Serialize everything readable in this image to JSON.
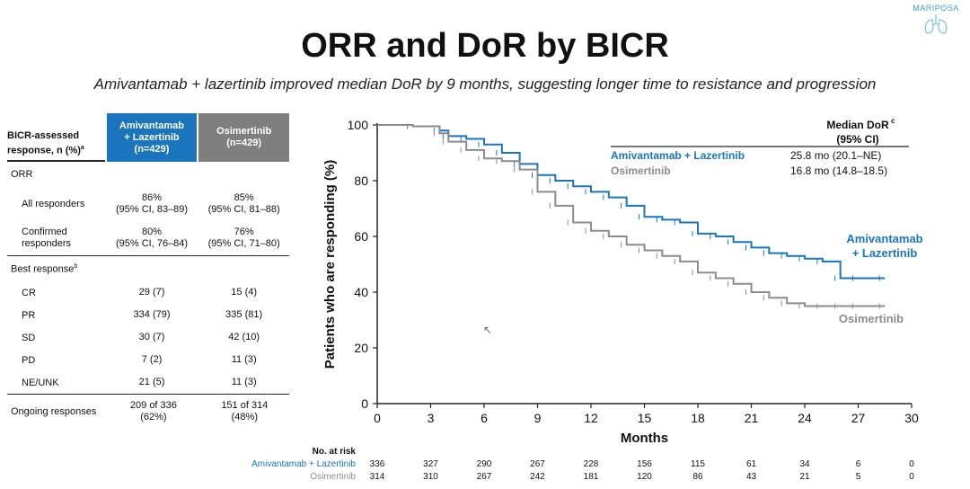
{
  "logo": {
    "text": "MARIPOSA"
  },
  "title": "ORR and DoR by BICR",
  "subtitle": "Amivantamab + lazertinib improved median DoR by 9 months, suggesting longer time to resistance and progression",
  "table": {
    "header": {
      "label": "BICR-assessed response, n (%)",
      "label_sup": "a",
      "col1": [
        "Amivantamab",
        "+ Lazertinib",
        "(n=429)"
      ],
      "col2": [
        "Osimertinib",
        "(n=429)"
      ]
    },
    "orr_label": "ORR",
    "all_responders": {
      "label": "All responders",
      "c1": [
        "86%",
        "(95% CI, 83–89)"
      ],
      "c2": [
        "85%",
        "(95% CI, 81–88)"
      ]
    },
    "confirmed": {
      "label": "Confirmed responders",
      "c1": [
        "80%",
        "(95% CI, 76–84)"
      ],
      "c2": [
        "76%",
        "(95% CI, 71–80)"
      ]
    },
    "best_response_label": "Best response",
    "best_response_sup": "b",
    "rows": [
      {
        "label": "CR",
        "c1": "29 (7)",
        "c2": "15 (4)"
      },
      {
        "label": "PR",
        "c1": "334 (79)",
        "c2": "335 (81)"
      },
      {
        "label": "SD",
        "c1": "30 (7)",
        "c2": "42 (10)"
      },
      {
        "label": "PD",
        "c1": "7 (2)",
        "c2": "11 (3)"
      },
      {
        "label": "NE/UNK",
        "c1": "21 (5)",
        "c2": "11 (3)"
      }
    ],
    "ongoing": {
      "label": "Ongoing responses",
      "c1": [
        "209 of 336",
        "(62%)"
      ],
      "c2": [
        "151 of 314",
        "(48%)"
      ]
    }
  },
  "chart_data": {
    "type": "line",
    "title": "",
    "xlabel": "Months",
    "ylabel": "Patients who are responding (%)",
    "xlim": [
      0,
      30
    ],
    "ylim": [
      0,
      100
    ],
    "xticks": [
      0,
      3,
      6,
      9,
      12,
      15,
      18,
      21,
      24,
      27,
      30
    ],
    "yticks": [
      0,
      20,
      40,
      60,
      80,
      100
    ],
    "colors": {
      "ami": "#1b75bc",
      "osi": "#8c8c8c"
    },
    "legend": {
      "heading": "Median DoR",
      "heading_sup": "c",
      "heading2": "(95% CI)",
      "entries": [
        {
          "name": "Amivantamab + Lazertinib",
          "value": "25.8 mo (20.1–NE)"
        },
        {
          "name": "Osimertinib",
          "value": "16.8 mo (14.8–18.5)"
        }
      ]
    },
    "end_labels": {
      "ami": [
        "Amivantamab",
        "+ Lazertinib"
      ],
      "osi": "Osimertinib"
    },
    "series": [
      {
        "name": "Amivantamab + Lazertinib",
        "x": [
          0,
          2,
          3.5,
          4,
          5,
          6,
          7,
          8,
          9,
          10,
          11,
          12,
          13,
          14,
          15,
          16,
          17,
          18,
          19,
          20,
          21,
          22,
          23,
          24,
          25,
          26,
          27,
          28.5
        ],
        "y": [
          100,
          99.5,
          98,
          96,
          95,
          93,
          90,
          86,
          82,
          80,
          78,
          76,
          74,
          71,
          67,
          66,
          65,
          61,
          60,
          58,
          56,
          54,
          53,
          52,
          51,
          45,
          45,
          45
        ]
      },
      {
        "name": "Osimertinib",
        "x": [
          0,
          2,
          3.5,
          4,
          5,
          6,
          7,
          8,
          9,
          10,
          11,
          12,
          13,
          14,
          15,
          16,
          17,
          18,
          19,
          20,
          21,
          22,
          23,
          24,
          25,
          26,
          27,
          28.5
        ],
        "y": [
          100,
          99.5,
          97,
          94,
          91,
          88,
          87,
          84,
          76,
          71,
          65,
          62,
          60,
          57,
          55,
          53,
          51,
          47,
          45,
          43,
          40,
          38,
          36,
          35,
          35,
          35,
          35,
          35
        ]
      }
    ],
    "risk_table": {
      "heading": "No. at risk",
      "rows": [
        {
          "name": "Amivantamab + Lazertinib",
          "values": [
            336,
            327,
            290,
            267,
            228,
            156,
            115,
            61,
            34,
            6,
            0
          ]
        },
        {
          "name": "Osimertinib",
          "values": [
            314,
            310,
            267,
            242,
            181,
            120,
            86,
            43,
            21,
            5,
            0
          ]
        }
      ]
    }
  }
}
